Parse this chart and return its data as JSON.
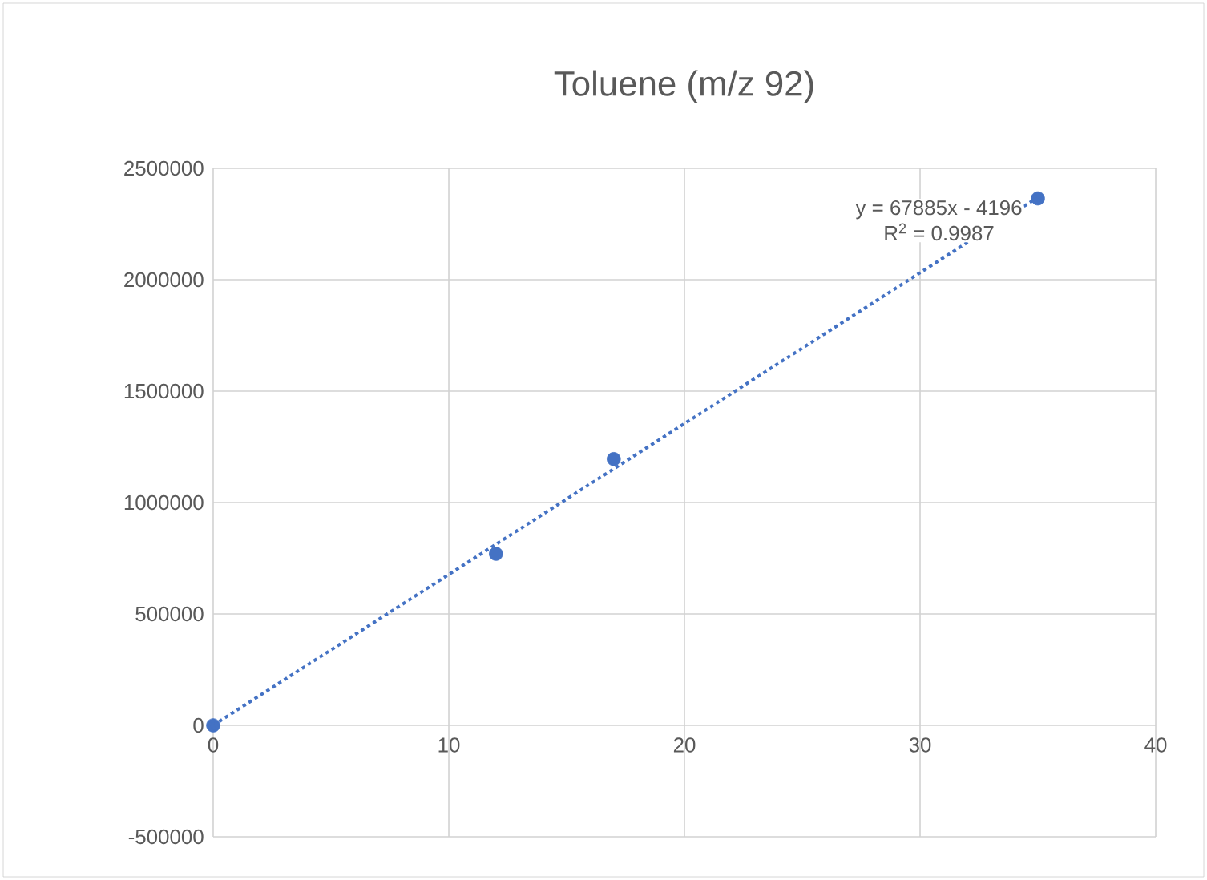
{
  "chart_data": {
    "type": "scatter",
    "title": "Toluene (m/z 92)",
    "series": [
      {
        "color": "#4472c4",
        "x": [
          0,
          12,
          17,
          35
        ],
        "values": [
          0,
          770000,
          1195000,
          2365000
        ]
      },
      {
        "type": "line",
        "color": "#4472c4",
        "line_style": "dotted",
        "x": [
          0,
          35
        ],
        "values": [
          0,
          2370000
        ]
      }
    ],
    "xlim": [
      0,
      40
    ],
    "xticks": [
      0,
      10,
      20,
      30,
      40
    ],
    "ylim": [
      -500000,
      2500000
    ],
    "yticks": [
      -500000,
      0,
      500000,
      1000000,
      1500000,
      2000000,
      2500000
    ],
    "grid": true,
    "marker": "circle",
    "annotations": [
      "y = 67885x - 4196",
      "R$^{2}$ = 0.9987"
    ]
  }
}
